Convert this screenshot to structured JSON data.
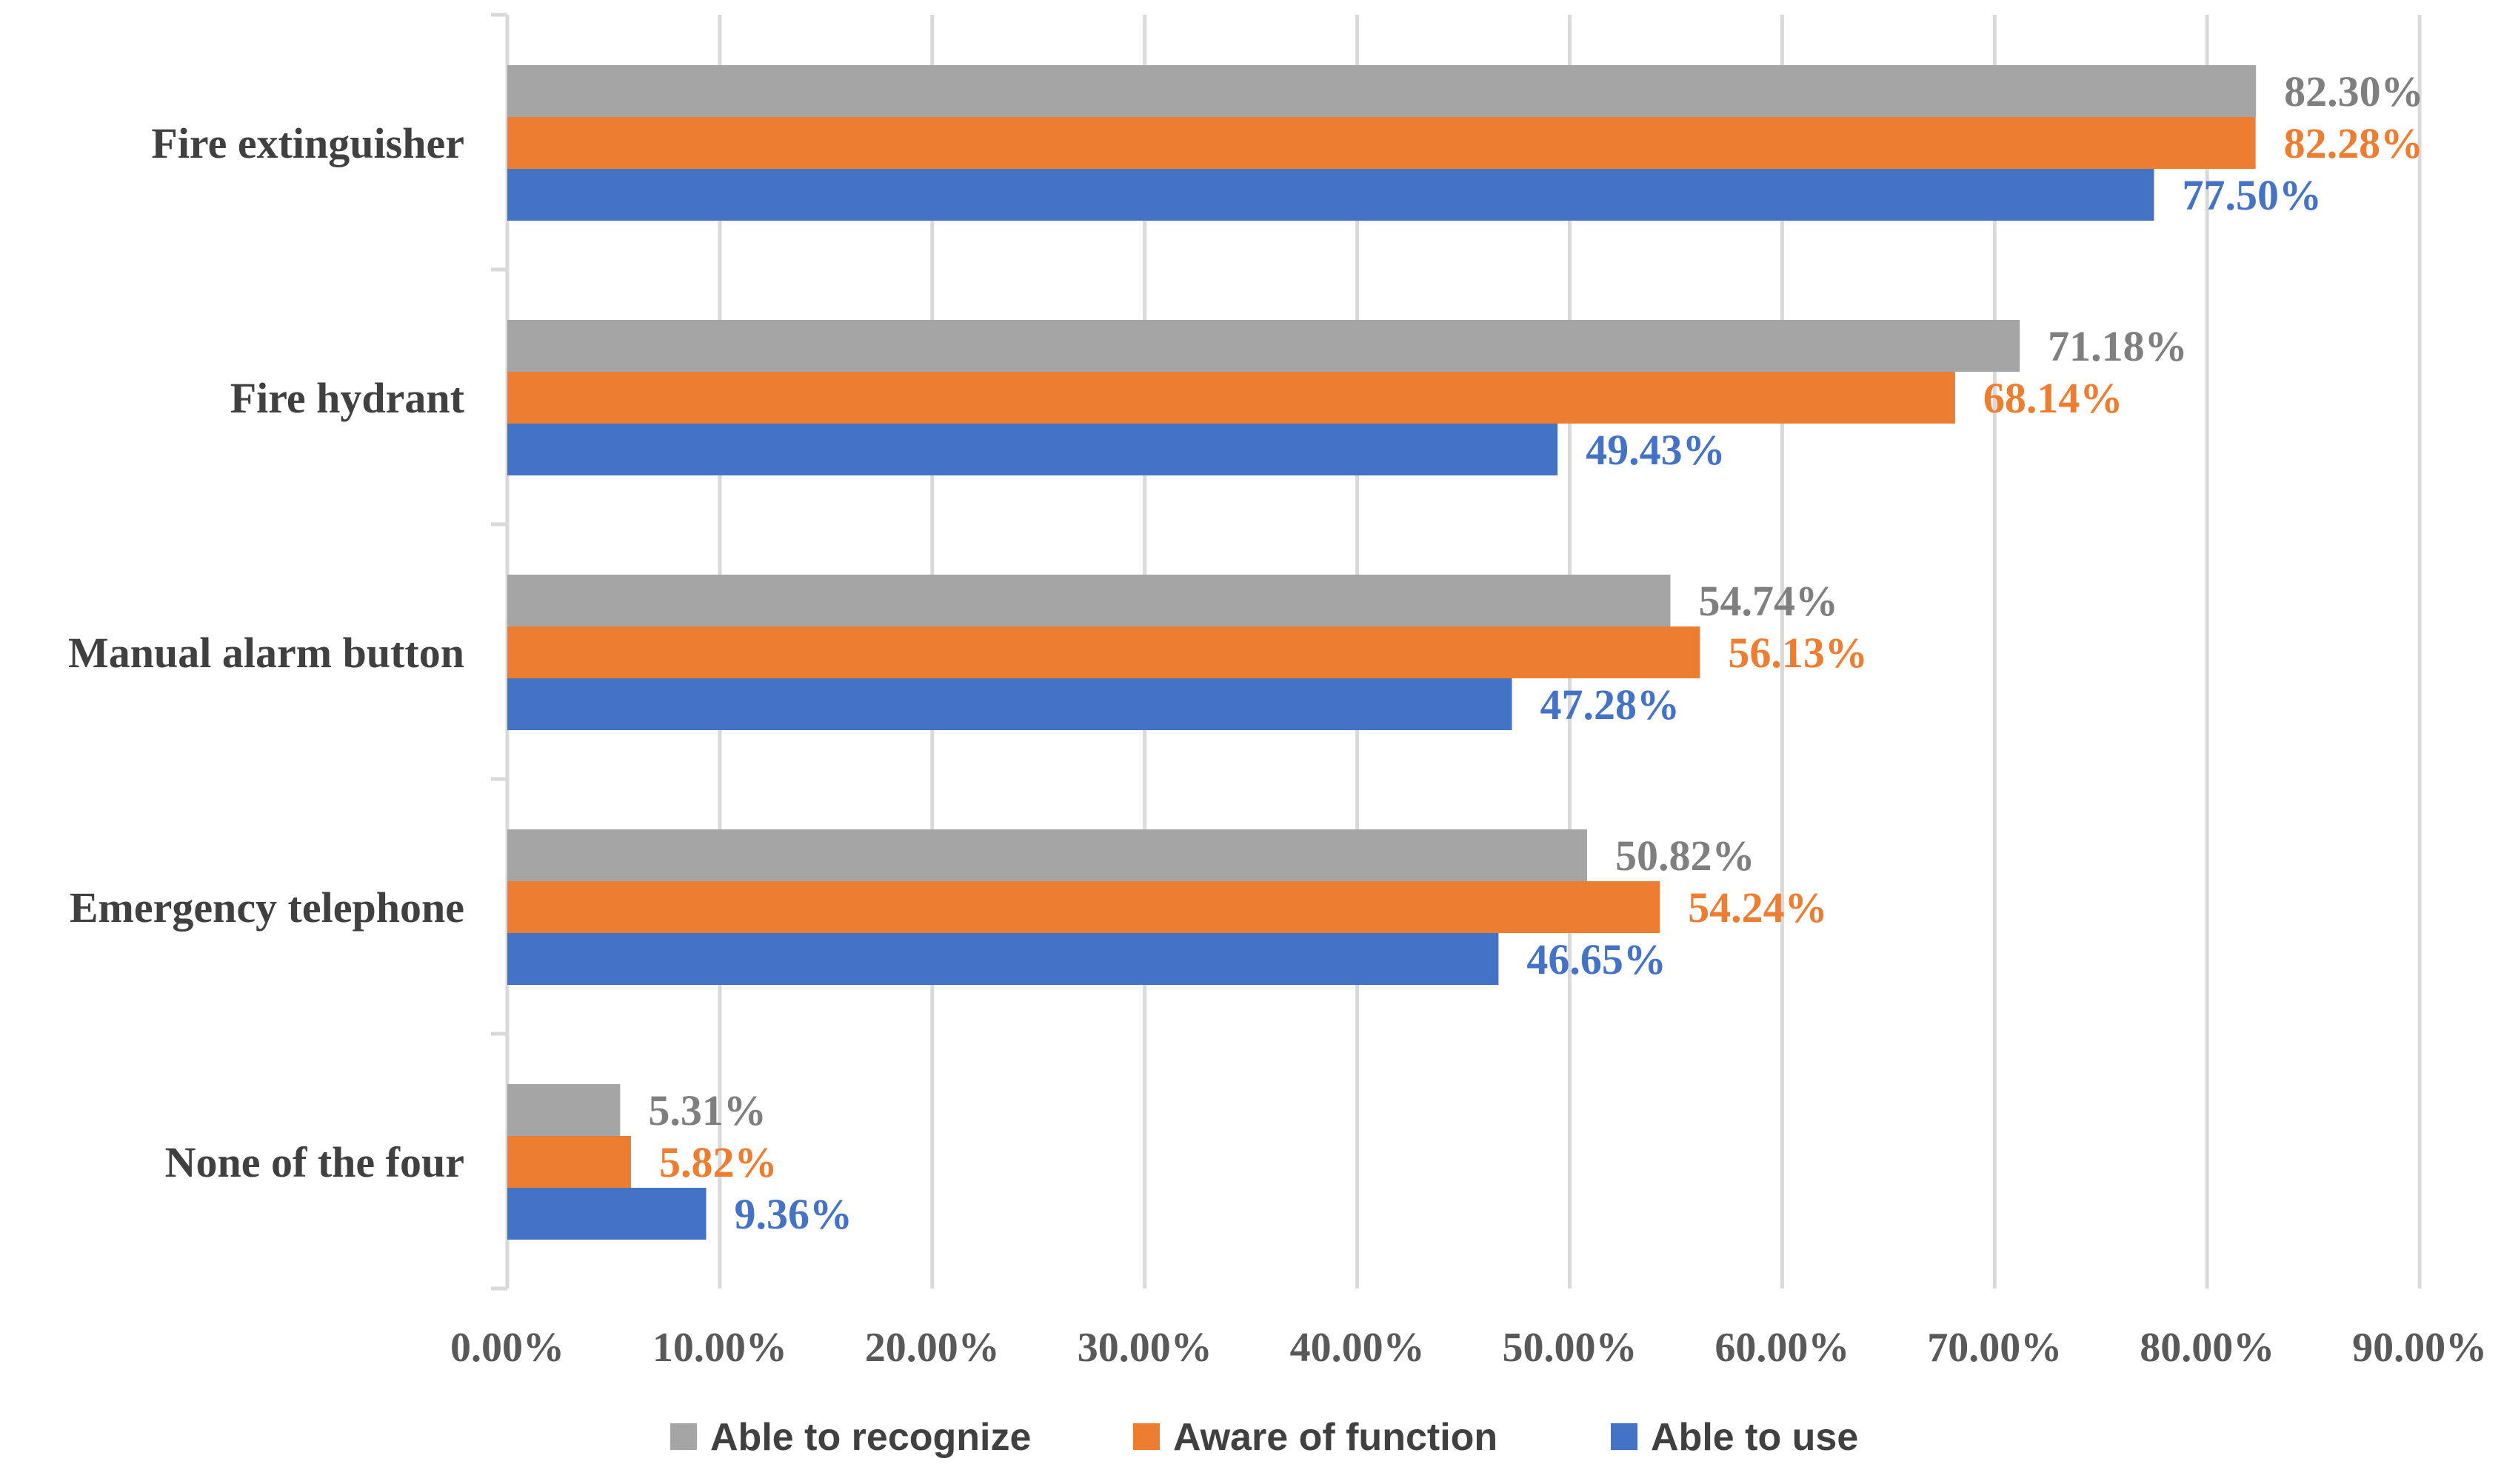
{
  "chart_data": {
    "type": "bar",
    "orientation": "horizontal",
    "title": "",
    "xlabel": "",
    "ylabel": "",
    "xlim": [
      0,
      90
    ],
    "x_ticks": [
      "0.00%",
      "10.00%",
      "20.00%",
      "30.00%",
      "40.00%",
      "50.00%",
      "60.00%",
      "70.00%",
      "80.00%",
      "90.00%"
    ],
    "grid": true,
    "legend_position": "bottom",
    "categories": [
      "Fire extinguisher",
      "Fire hydrant",
      "Manual alarm button",
      "Emergency telephone",
      "None of the four"
    ],
    "series": [
      {
        "name": "Able to recognize",
        "color": "#A5A5A5",
        "label_color": "#7F7F7F",
        "values": [
          82.3,
          71.18,
          54.74,
          50.82,
          5.31
        ],
        "labels": [
          "82.30%",
          "71.18%",
          "54.74%",
          "50.82%",
          "5.31%"
        ]
      },
      {
        "name": "Aware of function",
        "color": "#ED7D31",
        "label_color": "#ED7D31",
        "values": [
          82.28,
          68.14,
          56.13,
          54.24,
          5.82
        ],
        "labels": [
          "82.28%",
          "68.14%",
          "56.13%",
          "54.24%",
          "5.82%"
        ]
      },
      {
        "name": "Able to use",
        "color": "#4472C4",
        "label_color": "#4472C4",
        "values": [
          77.5,
          49.43,
          47.28,
          46.65,
          9.36
        ],
        "labels": [
          "77.50%",
          "49.43%",
          "47.28%",
          "46.65%",
          "9.36%"
        ]
      }
    ]
  }
}
